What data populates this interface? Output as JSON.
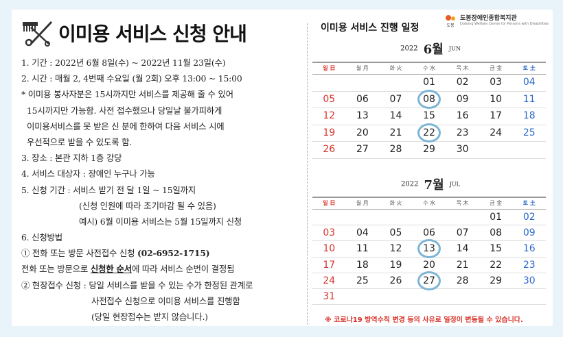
{
  "notice": {
    "title": "이미용 서비스 신청 안내",
    "lines": [
      "1. 기간 : 2022년 6월 8일(수) ~ 2022년 11월 23일(수)",
      "2. 시간 : 매월 2, 4번째 수요일 (월 2회) 오후 13:00 ~ 15:00",
      "* 이미용 봉사자분은 15시까지만 서비스를 제공해 줄 수 있어",
      "15시까지만 가능함. 사전 접수했으나 당일날 불가피하게",
      "이미용서비스를 못 받은 신 분에 한하여 다음 서비스 시에",
      "우선적으로 받을 수 있도록 함.",
      "3. 장소 : 본관 지하 1층 강당",
      "4. 서비스 대상자 : 장애인 누구나 가능",
      "5. 신청 기간 : 서비스 받기 전 달 1일 ~ 15일까지",
      "(신청 인원에 따라 조기마감 될 수 있음)",
      "예시) 6월 이미용 서비스는 5월 15일까지 신청",
      "6. 신청방법"
    ],
    "method1_prefix": "① 전화 또는 방문 사전접수 신청 ",
    "method1_phone": "(02-6952-1715)",
    "method1_note_prefix": "전화 또는 방문으로 ",
    "method1_note_emph": "신청한 순서",
    "method1_note_suffix": "에 따라 서비스 순번이 결정됨",
    "method2_lines": [
      "② 현장접수 신청 : 당일 서비스를 받을 수 있는 수가 한정된 관계로",
      "사전접수 신청으로 이미용 서비스를 진행함",
      "(당일 현장접수는 받지 않습니다.)"
    ]
  },
  "schedule": {
    "title": "이미용 서비스 진행 일정",
    "logo_name": "도봉장애인종합복지관",
    "logo_sub": "Dobong Welfare Center for Persons with Disabilities",
    "logo_mark": "도봉",
    "weekdays": [
      "일 日",
      "월 月",
      "화 火",
      "수 水",
      "목 木",
      "금 金",
      "토 土"
    ],
    "months": [
      {
        "year": "2022",
        "month": "6월",
        "month_en": "JUN",
        "weeks": [
          [
            "",
            "",
            "",
            "01",
            "02",
            "03",
            "04"
          ],
          [
            "05",
            "06",
            "07",
            "08",
            "09",
            "10",
            "11"
          ],
          [
            "12",
            "13",
            "14",
            "15",
            "16",
            "17",
            "18"
          ],
          [
            "19",
            "20",
            "21",
            "22",
            "23",
            "24",
            "25"
          ],
          [
            "26",
            "27",
            "28",
            "29",
            "30",
            "",
            ""
          ]
        ],
        "service_days": [
          "08",
          "22"
        ]
      },
      {
        "year": "2022",
        "month": "7월",
        "month_en": "JUL",
        "weeks": [
          [
            "",
            "",
            "",
            "",
            "",
            "01",
            "02"
          ],
          [
            "03",
            "04",
            "05",
            "06",
            "07",
            "08",
            "09"
          ],
          [
            "10",
            "11",
            "12",
            "13",
            "14",
            "15",
            "16"
          ],
          [
            "17",
            "18",
            "19",
            "20",
            "21",
            "22",
            "23"
          ],
          [
            "24",
            "25",
            "26",
            "27",
            "28",
            "29",
            "30"
          ],
          [
            "31",
            "",
            "",
            "",
            "",
            "",
            ""
          ]
        ],
        "service_days": [
          "13",
          "27"
        ]
      }
    ],
    "notice": "※ 코로나19 방역수칙 변경 등의 사유로 일정이 변동될 수 있습니다."
  },
  "colors": {
    "background": "#e9f3fa",
    "sunday": "#d9332b",
    "saturday": "#2a68c8",
    "highlight_ring": "#7db4d6"
  },
  "icons": [
    "comb-scissors-icon",
    "welfare-center-logo-icon"
  ]
}
